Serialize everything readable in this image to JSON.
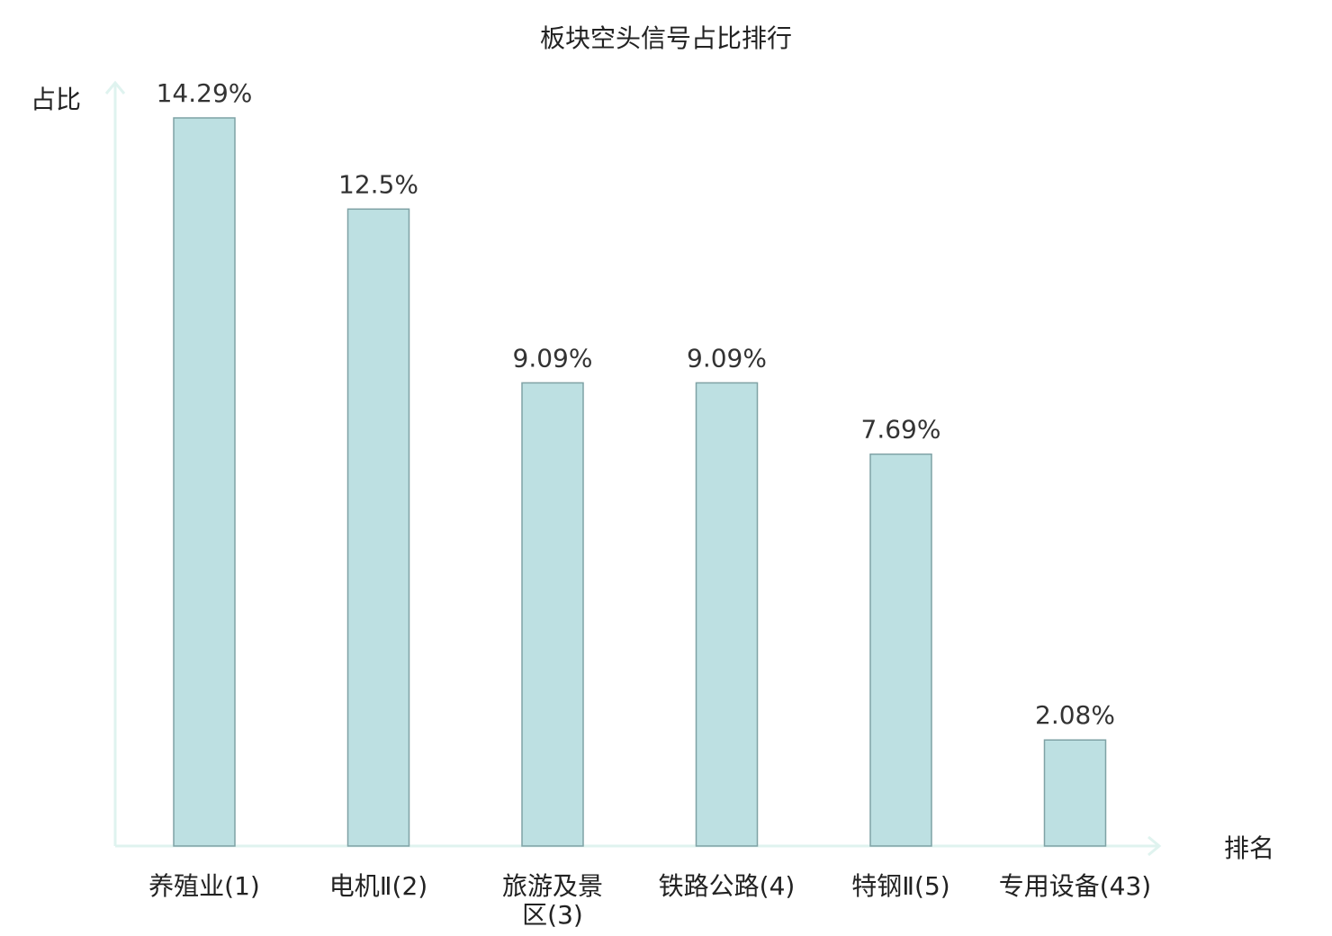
{
  "chart_data": {
    "type": "bar",
    "title": "板块空头信号占比排行",
    "ylabel": "占比",
    "xlabel": "排名",
    "categories": [
      "养殖业(1)",
      "电机Ⅱ(2)",
      "旅游及景区(3)",
      "铁路公路(4)",
      "特钢Ⅱ(5)",
      "专用设备(43)"
    ],
    "category_lines": [
      [
        "养殖业(1)"
      ],
      [
        "电机Ⅱ(2)"
      ],
      [
        "旅游及景",
        "区(3)"
      ],
      [
        "铁路公路(4)"
      ],
      [
        "特钢Ⅱ(5)"
      ],
      [
        "专用设备(43)"
      ]
    ],
    "values": [
      14.29,
      12.5,
      9.09,
      9.09,
      7.69,
      2.08
    ],
    "value_labels": [
      "14.29%",
      "12.5%",
      "9.09%",
      "9.09%",
      "7.69%",
      "2.08%"
    ],
    "highlight_index": 5,
    "ylim": [
      0,
      14.29
    ],
    "grid": false,
    "colors": {
      "bar_fill": "#bde0e2",
      "bar_stroke": "#7fa2a5",
      "axis": "#dff3ef",
      "label": "#222222",
      "value_label": "#333333",
      "highlight": "#e02020"
    }
  }
}
